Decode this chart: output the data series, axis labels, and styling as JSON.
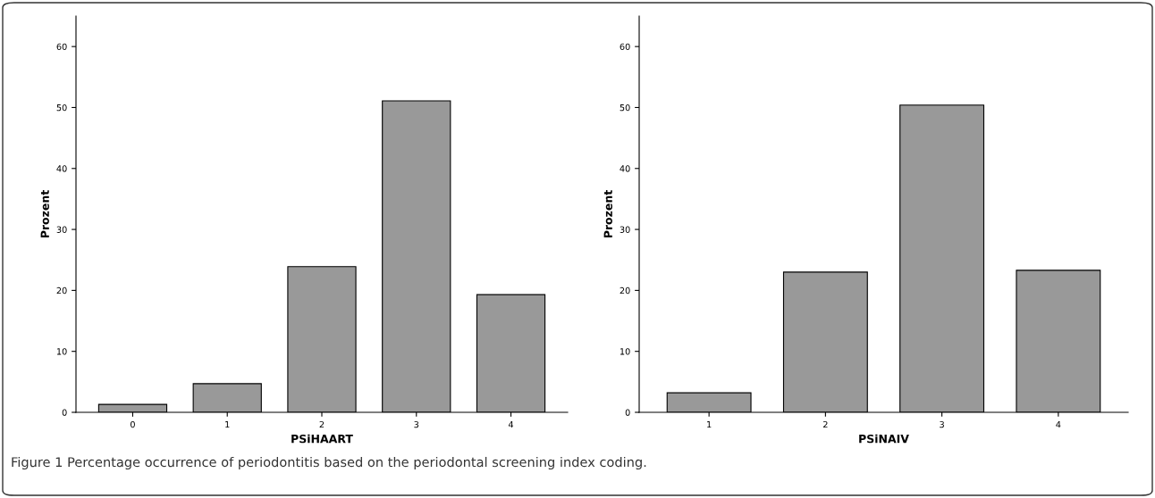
{
  "chart_data": [
    {
      "type": "bar",
      "xlabel": "PSiHAART",
      "ylabel": "Prozent",
      "categories": [
        "0",
        "1",
        "2",
        "3",
        "4"
      ],
      "values": [
        1.3,
        4.7,
        23.9,
        51.1,
        19.3
      ],
      "color": "#999999",
      "ylim": [
        0,
        65
      ],
      "yticks": [
        0,
        10,
        20,
        30,
        40,
        50,
        60
      ],
      "grid": false,
      "annotations": [
        "Figure 1 Percentage occurrence of periodontitis based on the periodontal screening index coding."
      ]
    },
    {
      "type": "bar",
      "xlabel": "PSiNAIV",
      "ylabel": "Prozent",
      "categories": [
        "1",
        "2",
        "3",
        "4"
      ],
      "values": [
        3.2,
        23.0,
        50.4,
        23.3
      ],
      "color": "#999999",
      "ylim": [
        0,
        65
      ],
      "yticks": [
        0,
        10,
        20,
        30,
        40,
        50,
        60
      ],
      "grid": false
    }
  ]
}
